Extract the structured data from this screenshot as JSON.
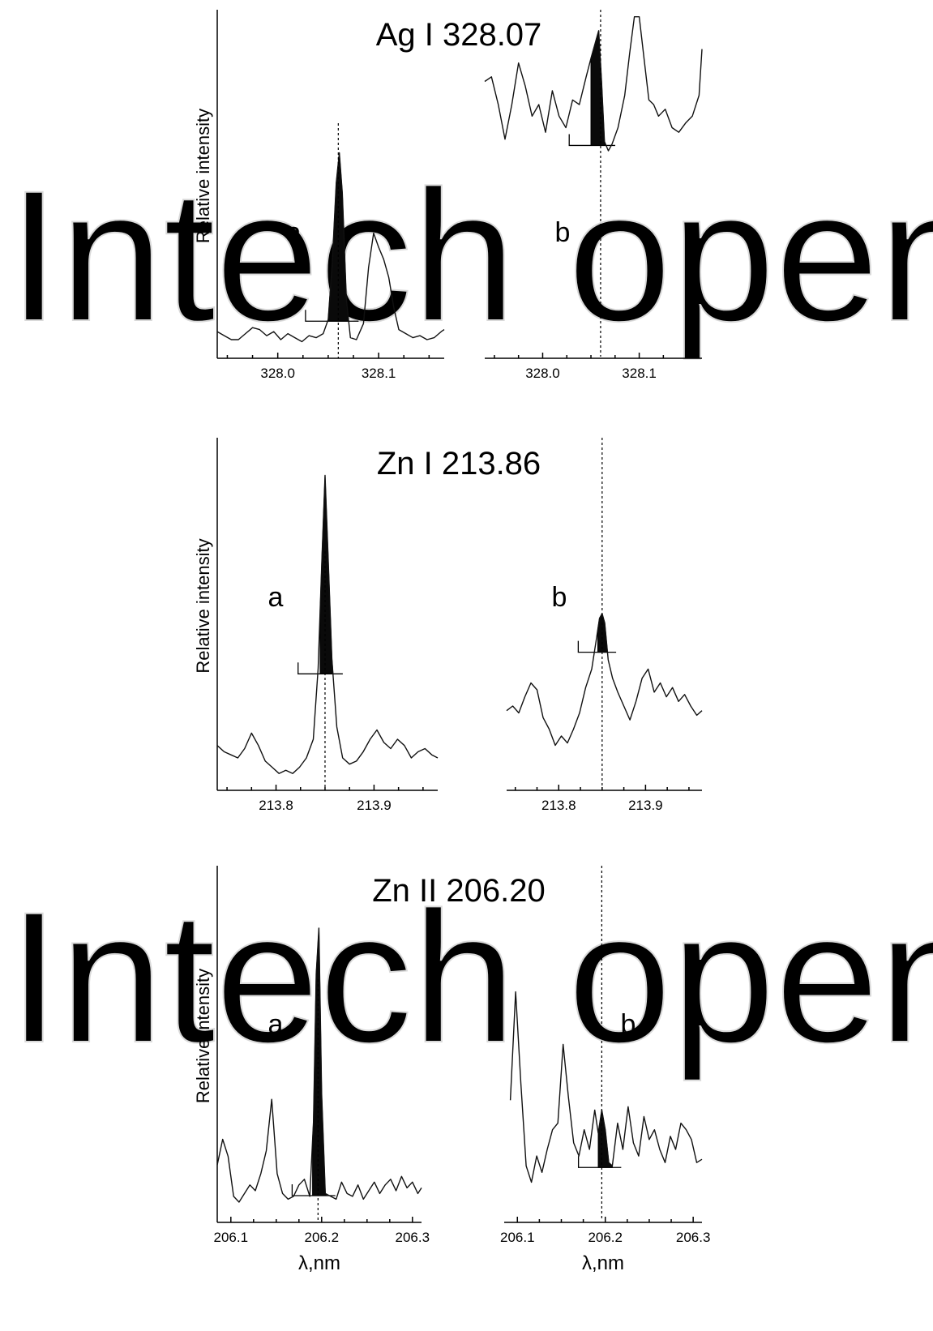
{
  "watermark": "Intech open",
  "chart_data": [
    {
      "type": "line",
      "title": "Ag I 328.07",
      "panel": "a",
      "xlabel": "",
      "ylabel": "Relative intensity",
      "xticks": [
        328.0,
        328.1
      ],
      "xtick_labels": [
        "328.0",
        "328.1"
      ],
      "xlim": [
        327.94,
        328.165
      ],
      "ylim": [
        0,
        1
      ],
      "grid": false,
      "line_position": 328.06,
      "x": [
        327.94,
        327.947,
        327.954,
        327.961,
        327.968,
        327.975,
        327.982,
        327.989,
        327.996,
        328.003,
        328.01,
        328.017,
        328.024,
        328.031,
        328.038,
        328.045,
        328.05,
        328.054,
        328.058,
        328.061,
        328.064,
        328.068,
        328.072,
        328.078,
        328.085,
        328.09,
        328.095,
        328.1,
        328.105,
        328.11,
        328.115,
        328.12,
        328.127,
        328.134,
        328.141,
        328.148,
        328.155,
        328.162,
        328.165
      ],
      "y": [
        0.06,
        0.04,
        0.02,
        0.02,
        0.05,
        0.08,
        0.07,
        0.04,
        0.06,
        0.02,
        0.05,
        0.03,
        0.01,
        0.04,
        0.03,
        0.05,
        0.12,
        0.4,
        0.8,
        0.95,
        0.75,
        0.22,
        0.03,
        0.02,
        0.1,
        0.38,
        0.55,
        0.48,
        0.42,
        0.33,
        0.18,
        0.07,
        0.05,
        0.03,
        0.04,
        0.02,
        0.03,
        0.06,
        0.07
      ],
      "shaded_x": [
        328.05,
        328.07
      ]
    },
    {
      "type": "line",
      "title": "",
      "panel": "b",
      "xlabel": "",
      "ylabel": "",
      "xticks": [
        328.0,
        328.1
      ],
      "xtick_labels": [
        "328.0",
        "328.1"
      ],
      "xlim": [
        327.94,
        328.165
      ],
      "ylim": [
        0,
        1
      ],
      "grid": false,
      "line_position": 328.06,
      "x": [
        327.94,
        327.947,
        327.954,
        327.961,
        327.968,
        327.975,
        327.982,
        327.989,
        327.996,
        328.003,
        328.01,
        328.017,
        328.024,
        328.031,
        328.038,
        328.045,
        328.05,
        328.054,
        328.058,
        328.061,
        328.064,
        328.068,
        328.072,
        328.078,
        328.085,
        328.09,
        328.095,
        328.1,
        328.105,
        328.11,
        328.115,
        328.12,
        328.127,
        328.134,
        328.141,
        328.148,
        328.155,
        328.162,
        328.165
      ],
      "y": [
        0.7,
        0.72,
        0.6,
        0.45,
        0.6,
        0.78,
        0.68,
        0.55,
        0.6,
        0.48,
        0.66,
        0.55,
        0.5,
        0.62,
        0.6,
        0.72,
        0.8,
        0.86,
        0.92,
        0.7,
        0.44,
        0.4,
        0.43,
        0.5,
        0.64,
        0.82,
        0.98,
        0.98,
        0.8,
        0.62,
        0.6,
        0.55,
        0.58,
        0.5,
        0.48,
        0.52,
        0.55,
        0.64,
        0.84
      ],
      "shaded_x": [
        328.05,
        328.065
      ]
    },
    {
      "type": "line",
      "title": "Zn I 213.86",
      "panel": "a",
      "xlabel": "",
      "ylabel": "Relative intensity",
      "xticks": [
        213.8,
        213.9
      ],
      "xtick_labels": [
        "213.8",
        "213.9"
      ],
      "xlim": [
        213.74,
        213.965
      ],
      "ylim": [
        0,
        1
      ],
      "grid": false,
      "line_position": 213.85,
      "x": [
        213.74,
        213.747,
        213.754,
        213.761,
        213.768,
        213.775,
        213.782,
        213.789,
        213.796,
        213.803,
        213.81,
        213.817,
        213.824,
        213.831,
        213.838,
        213.843,
        213.847,
        213.85,
        213.853,
        213.857,
        213.862,
        213.868,
        213.875,
        213.882,
        213.889,
        213.896,
        213.903,
        213.91,
        213.917,
        213.924,
        213.931,
        213.938,
        213.945,
        213.952,
        213.959,
        213.965
      ],
      "y": [
        0.1,
        0.08,
        0.07,
        0.06,
        0.09,
        0.14,
        0.1,
        0.05,
        0.03,
        0.01,
        0.02,
        0.01,
        0.03,
        0.06,
        0.12,
        0.35,
        0.72,
        0.97,
        0.72,
        0.38,
        0.16,
        0.06,
        0.04,
        0.05,
        0.08,
        0.12,
        0.15,
        0.11,
        0.09,
        0.12,
        0.1,
        0.06,
        0.08,
        0.09,
        0.07,
        0.06
      ],
      "shaded_x": [
        213.845,
        213.858
      ]
    },
    {
      "type": "line",
      "title": "",
      "panel": "b",
      "xlabel": "",
      "ylabel": "",
      "xticks": [
        213.8,
        213.9
      ],
      "xtick_labels": [
        "213.8",
        "213.9"
      ],
      "xlim": [
        213.74,
        213.965
      ],
      "ylim": [
        0,
        1
      ],
      "grid": false,
      "line_position": 213.85,
      "x": [
        213.74,
        213.747,
        213.754,
        213.761,
        213.768,
        213.775,
        213.782,
        213.789,
        213.796,
        213.803,
        213.81,
        213.817,
        213.824,
        213.831,
        213.838,
        213.843,
        213.847,
        213.85,
        213.853,
        213.857,
        213.862,
        213.868,
        213.875,
        213.882,
        213.889,
        213.896,
        213.903,
        213.91,
        213.917,
        213.924,
        213.931,
        213.938,
        213.945,
        213.952,
        213.959,
        213.965
      ],
      "y": [
        0.38,
        0.4,
        0.37,
        0.44,
        0.5,
        0.47,
        0.35,
        0.3,
        0.23,
        0.27,
        0.24,
        0.3,
        0.37,
        0.48,
        0.56,
        0.68,
        0.78,
        0.8,
        0.76,
        0.6,
        0.52,
        0.46,
        0.4,
        0.34,
        0.42,
        0.52,
        0.56,
        0.46,
        0.5,
        0.44,
        0.48,
        0.42,
        0.45,
        0.4,
        0.36,
        0.38
      ],
      "shaded_x": [
        213.845,
        213.856
      ]
    },
    {
      "type": "line",
      "title": "Zn II 206.20",
      "panel": "a",
      "xlabel": "λ,nm",
      "ylabel": "Relative intensity",
      "xticks": [
        206.1,
        206.2,
        206.3
      ],
      "xtick_labels": [
        "206.1",
        "206.2",
        "206.3"
      ],
      "xlim": [
        206.085,
        206.31
      ],
      "ylim": [
        0,
        1
      ],
      "grid": false,
      "line_position": 206.196,
      "x": [
        206.085,
        206.091,
        206.097,
        206.103,
        206.109,
        206.115,
        206.121,
        206.127,
        206.133,
        206.139,
        206.145,
        206.151,
        206.157,
        206.163,
        206.169,
        206.175,
        206.181,
        206.187,
        206.191,
        206.194,
        206.197,
        206.2,
        206.204,
        206.21,
        206.216,
        206.222,
        206.228,
        206.234,
        206.24,
        206.246,
        206.252,
        206.258,
        206.264,
        206.27,
        206.276,
        206.282,
        206.288,
        206.294,
        206.3,
        206.306,
        206.31
      ],
      "y": [
        0.15,
        0.24,
        0.18,
        0.04,
        0.02,
        0.05,
        0.08,
        0.06,
        0.12,
        0.2,
        0.38,
        0.12,
        0.05,
        0.03,
        0.04,
        0.08,
        0.1,
        0.04,
        0.3,
        0.82,
        0.98,
        0.4,
        0.05,
        0.04,
        0.03,
        0.09,
        0.05,
        0.04,
        0.08,
        0.03,
        0.06,
        0.09,
        0.05,
        0.08,
        0.1,
        0.06,
        0.11,
        0.07,
        0.09,
        0.05,
        0.07
      ],
      "shaded_x": [
        206.19,
        206.205
      ]
    },
    {
      "type": "line",
      "title": "",
      "panel": "b",
      "xlabel": "λ,nm",
      "ylabel": "",
      "xticks": [
        206.1,
        206.2,
        206.3
      ],
      "xtick_labels": [
        "206.1",
        "206.2",
        "206.3"
      ],
      "xlim": [
        206.085,
        206.31
      ],
      "ylim": [
        0,
        1
      ],
      "grid": false,
      "line_position": 206.196,
      "x": [
        206.092,
        206.098,
        206.104,
        206.11,
        206.116,
        206.122,
        206.128,
        206.134,
        206.14,
        206.146,
        206.152,
        206.158,
        206.164,
        206.17,
        206.176,
        206.182,
        206.188,
        206.192,
        206.196,
        206.2,
        206.204,
        206.208,
        206.214,
        206.22,
        206.226,
        206.232,
        206.238,
        206.244,
        206.25,
        206.256,
        206.262,
        206.268,
        206.274,
        206.28,
        206.286,
        206.292,
        206.298,
        206.304,
        206.31
      ],
      "y": [
        0.55,
        0.88,
        0.6,
        0.35,
        0.3,
        0.38,
        0.33,
        0.4,
        0.46,
        0.48,
        0.72,
        0.56,
        0.42,
        0.38,
        0.46,
        0.4,
        0.52,
        0.45,
        0.52,
        0.46,
        0.36,
        0.35,
        0.48,
        0.4,
        0.53,
        0.42,
        0.38,
        0.5,
        0.43,
        0.46,
        0.4,
        0.36,
        0.44,
        0.4,
        0.48,
        0.46,
        0.43,
        0.36,
        0.37
      ],
      "shaded_x": [
        206.192,
        206.208
      ]
    }
  ]
}
